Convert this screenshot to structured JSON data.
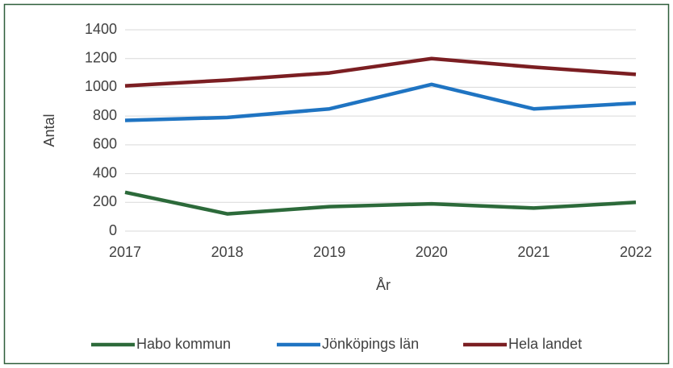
{
  "chart_data": {
    "type": "line",
    "x": [
      2017,
      2018,
      2019,
      2020,
      2021,
      2022
    ],
    "xlim": [
      2017,
      2022
    ],
    "xticks": [
      2017,
      2018,
      2019,
      2020,
      2021,
      2022
    ],
    "ylim": [
      0,
      1400
    ],
    "yticks": [
      0,
      200,
      400,
      600,
      800,
      1000,
      1200,
      1400
    ],
    "xlabel": "År",
    "ylabel": "Antal",
    "grid": true,
    "legend": "bottom",
    "series": [
      {
        "name": "Habo kommun",
        "color": "#2c6a3a",
        "values": [
          270,
          120,
          170,
          190,
          160,
          200
        ]
      },
      {
        "name": "Jönköpings län",
        "color": "#1f74c2",
        "values": [
          770,
          790,
          850,
          1020,
          850,
          890
        ]
      },
      {
        "name": "Hela landet",
        "color": "#7b1e22",
        "values": [
          1010,
          1050,
          1100,
          1200,
          1140,
          1090
        ]
      }
    ]
  }
}
